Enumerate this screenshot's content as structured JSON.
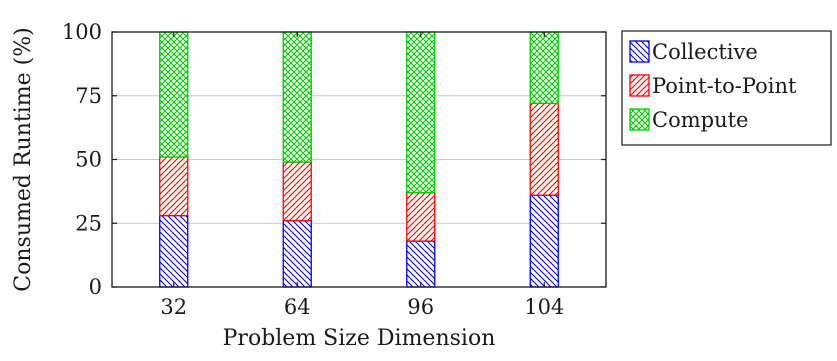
{
  "chart_data": {
    "type": "bar",
    "stacked": true,
    "title": "",
    "xlabel": "Problem Size Dimension",
    "ylabel": "Consumed Runtime (%)",
    "ylim": [
      0,
      100
    ],
    "yticks": [
      0,
      25,
      50,
      75,
      100
    ],
    "categories": [
      "32",
      "64",
      "96",
      "104"
    ],
    "grid": "horizontal",
    "legend_position": "outside-right-top",
    "series": [
      {
        "name": "Collective",
        "values": [
          28,
          26,
          18,
          36
        ],
        "color": "#0000ff",
        "pattern": "north-west-lines"
      },
      {
        "name": "Point-to-Point",
        "values": [
          23,
          23,
          19,
          36
        ],
        "color": "#ff0000",
        "pattern": "north-east-lines"
      },
      {
        "name": "Compute",
        "values": [
          49,
          51,
          63,
          28
        ],
        "color": "#00cc00",
        "pattern": "crosshatch"
      }
    ]
  }
}
